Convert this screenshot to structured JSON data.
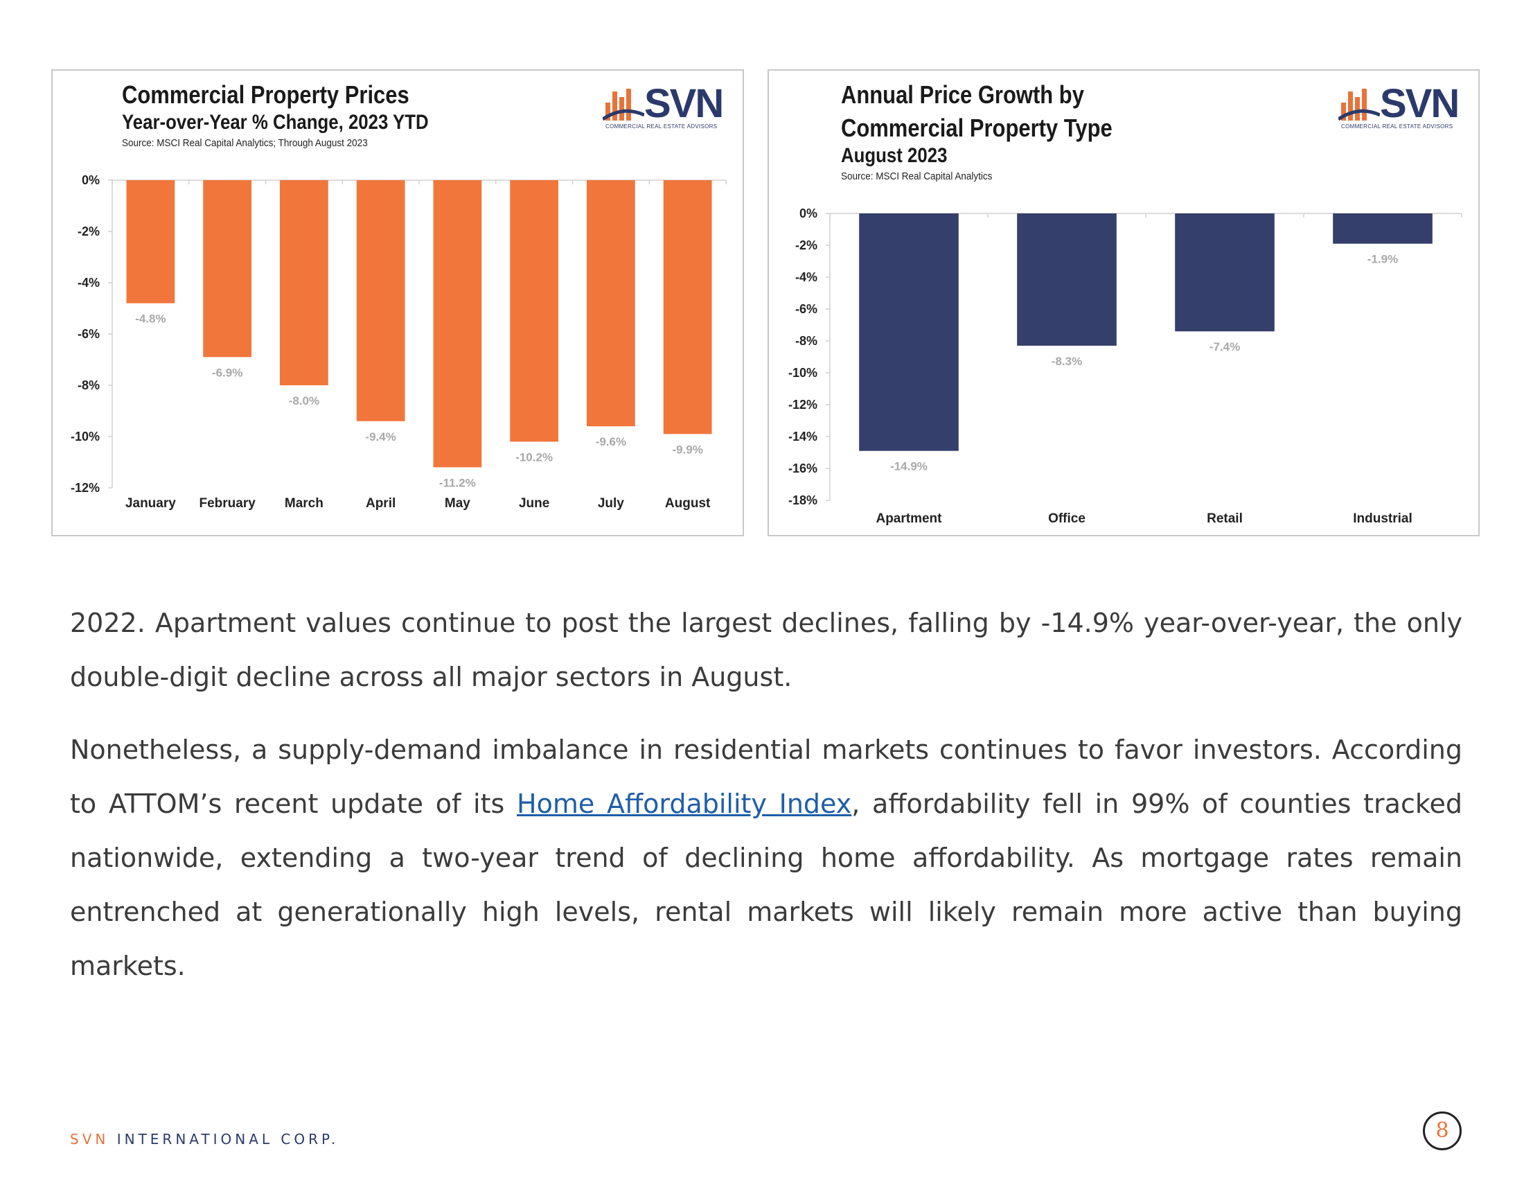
{
  "charts": {
    "left": {
      "title": "Commercial Property Prices",
      "subtitle": "Year-over-Year % Change, 2023 YTD",
      "source": "Source: MSCI Real Capital Analytics; Through August 2023"
    },
    "right": {
      "title_line1": "Annual Price Growth by",
      "title_line2": "Commercial Property Type",
      "subtitle": "August 2023",
      "source": "Source: MSCI Real Capital Analytics"
    }
  },
  "logo": {
    "text": "SVN",
    "tagline": "COMMERCIAL REAL ESTATE ADVISORS"
  },
  "chart_data": [
    {
      "type": "bar",
      "title": "Commercial Property Prices",
      "subtitle": "Year-over-Year % Change, 2023 YTD",
      "categories": [
        "January",
        "February",
        "March",
        "April",
        "May",
        "June",
        "July",
        "August"
      ],
      "values": [
        -4.8,
        -6.9,
        -8.0,
        -9.4,
        -11.2,
        -10.2,
        -9.6,
        -9.9
      ],
      "value_labels": [
        "-4.8%",
        "-6.9%",
        "-8.0%",
        "-9.4%",
        "-11.2%",
        "-10.2%",
        "-9.6%",
        "-9.9%"
      ],
      "ylim": [
        -12,
        0
      ],
      "yticks": [
        0,
        -2,
        -4,
        -6,
        -8,
        -10,
        -12
      ],
      "ytick_labels": [
        "0%",
        "-2%",
        "-4%",
        "-6%",
        "-8%",
        "-10%",
        "-12%"
      ],
      "color": "#f1763b",
      "grid": false
    },
    {
      "type": "bar",
      "title": "Annual Price Growth by Commercial Property Type",
      "subtitle": "August 2023",
      "categories": [
        "Apartment",
        "Office",
        "Retail",
        "Industrial"
      ],
      "values": [
        -14.9,
        -8.3,
        -7.4,
        -1.9
      ],
      "value_labels": [
        "-14.9%",
        "-8.3%",
        "-7.4%",
        "-1.9%"
      ],
      "ylim": [
        -18,
        0
      ],
      "yticks": [
        0,
        -2,
        -4,
        -6,
        -8,
        -10,
        -12,
        -14,
        -16,
        -18
      ],
      "ytick_labels": [
        "0%",
        "-2%",
        "-4%",
        "-6%",
        "-8%",
        "-10%",
        "-12%",
        "-14%",
        "-16%",
        "-18%"
      ],
      "color": "#353f6b",
      "grid": false
    }
  ],
  "body": {
    "para1": "2022. Apartment values continue to post the largest declines, falling by -14.9% year-over-year, the only double-digit decline across all major sectors in August.",
    "para2_before": "Nonetheless, a supply-demand imbalance in residential markets continues to favor investors. According to ATTOM’s recent update of its ",
    "para2_link": "Home Affordability Index",
    "para2_after": ", affordability fell in 99% of counties tracked nationwide, extending a two-year trend of declining home affordability. As mortgage rates remain entrenched at generationally high levels, rental markets will likely remain more active than buying markets."
  },
  "footer": {
    "brand": "SVN",
    "corp": "INTERNATIONAL CORP.",
    "page_number": "8"
  }
}
